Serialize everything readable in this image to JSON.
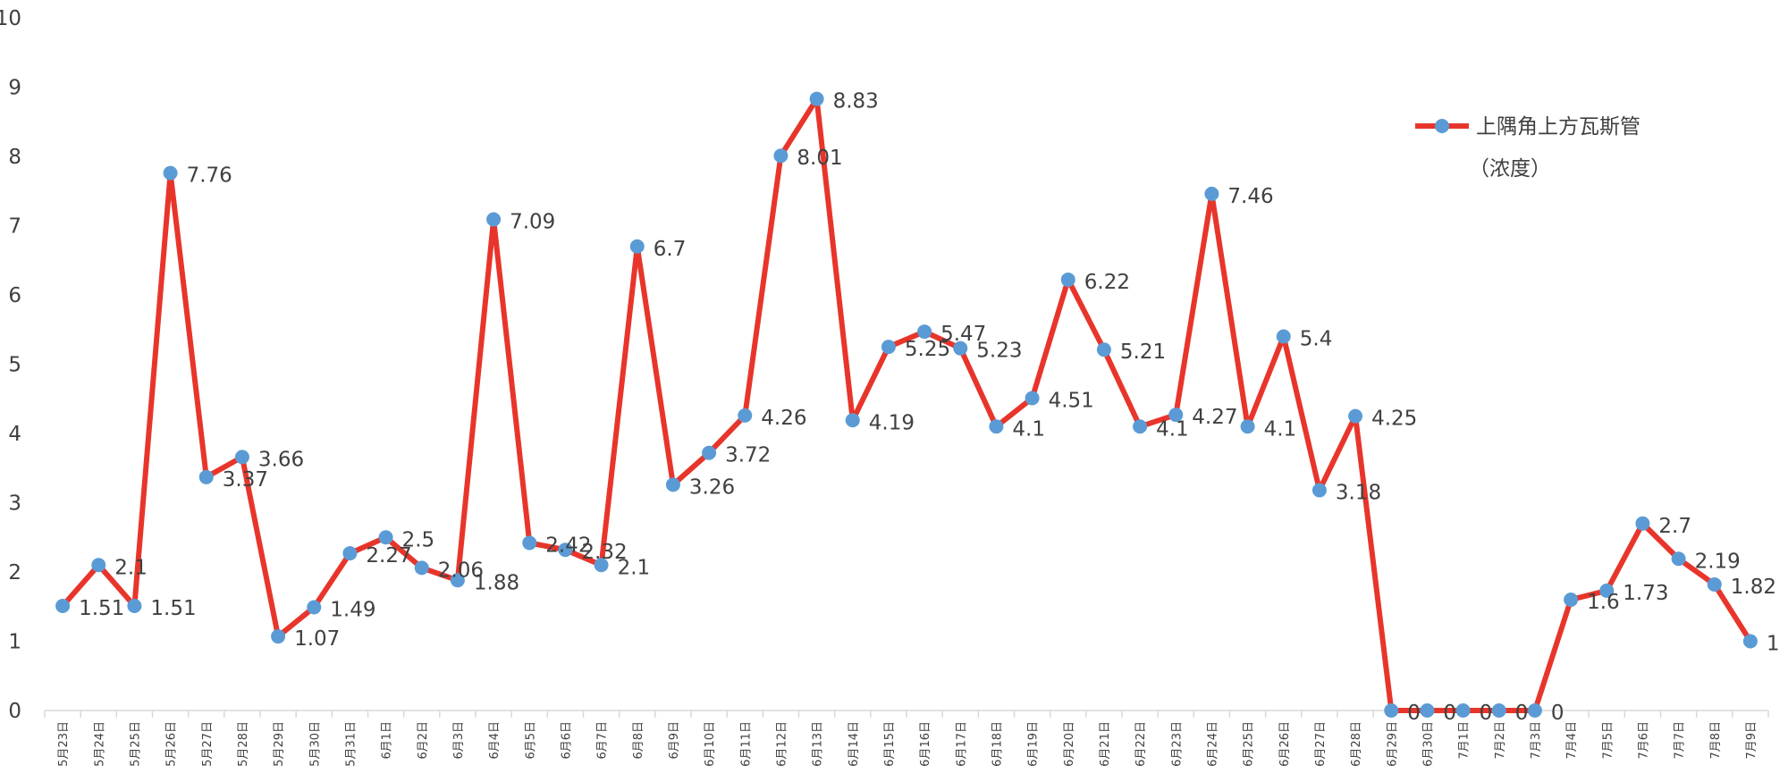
{
  "chart_data": {
    "type": "line",
    "title": "",
    "xlabel": "",
    "ylabel": "",
    "ylim": [
      0,
      10
    ],
    "yticks": [
      "0",
      "1",
      "2",
      "3",
      "4",
      "5",
      "6",
      "7",
      "8",
      "9",
      "10"
    ],
    "grid": false,
    "legend_position": "top-right",
    "categories": [
      "5月23日",
      "5月24日",
      "5月25日",
      "5月26日",
      "5月27日",
      "5月28日",
      "5月29日",
      "5月30日",
      "5月31日",
      "6月1日",
      "6月2日",
      "6月3日",
      "6月4日",
      "6月5日",
      "6月6日",
      "6月7日",
      "6月8日",
      "6月9日",
      "6月10日",
      "6月11日",
      "6月12日",
      "6月13日",
      "6月14日",
      "6月15日",
      "6月16日",
      "6月17日",
      "6月18日",
      "6月19日",
      "6月20日",
      "6月21日",
      "6月22日",
      "6月23日",
      "6月24日",
      "6月25日",
      "6月26日",
      "6月27日",
      "6月28日",
      "6月29日",
      "6月30日",
      "7月1日",
      "7月2日",
      "7月3日",
      "7月4日",
      "7月5日",
      "7月6日",
      "7月7日",
      "7月8日",
      "7月9日"
    ],
    "series": [
      {
        "name": "上隅角上方瓦斯管",
        "name_line2": "（浓度）",
        "color": "#e8352b",
        "marker_color": "#5b9bd5",
        "values": [
          1.51,
          2.1,
          1.51,
          7.76,
          3.37,
          3.66,
          1.07,
          1.49,
          2.27,
          2.5,
          2.06,
          1.88,
          7.09,
          2.42,
          2.32,
          2.1,
          6.7,
          3.26,
          3.72,
          4.26,
          8.01,
          8.83,
          4.19,
          5.25,
          5.47,
          5.23,
          4.1,
          4.51,
          6.22,
          5.21,
          4.1,
          4.27,
          7.46,
          4.1,
          5.4,
          3.18,
          4.25,
          0,
          0,
          0,
          0,
          0,
          1.6,
          1.73,
          2.7,
          2.19,
          1.82,
          1
        ],
        "data_labels": [
          "1.51",
          "2.1",
          "1.51",
          "7.76",
          "3.37",
          "3.66",
          "1.07",
          "1.49",
          "2.27",
          "2.5",
          "2.06",
          "1.88",
          "7.09",
          "2.42",
          "2.32",
          "2.1",
          "6.7",
          "3.26",
          "3.72",
          "4.26",
          "8.01",
          "8.83",
          "4.19",
          "5.25",
          "5.47",
          "5.23",
          "4.1",
          "4.51",
          "6.22",
          "5.21",
          "4.1",
          "4.27",
          "7.46",
          "4.1",
          "5.4",
          "3.18",
          "4.25",
          "0",
          "0",
          "0",
          "0",
          "0",
          "1.6",
          "1.73",
          "2.7",
          "2.19",
          "1.82",
          "1"
        ]
      }
    ]
  }
}
